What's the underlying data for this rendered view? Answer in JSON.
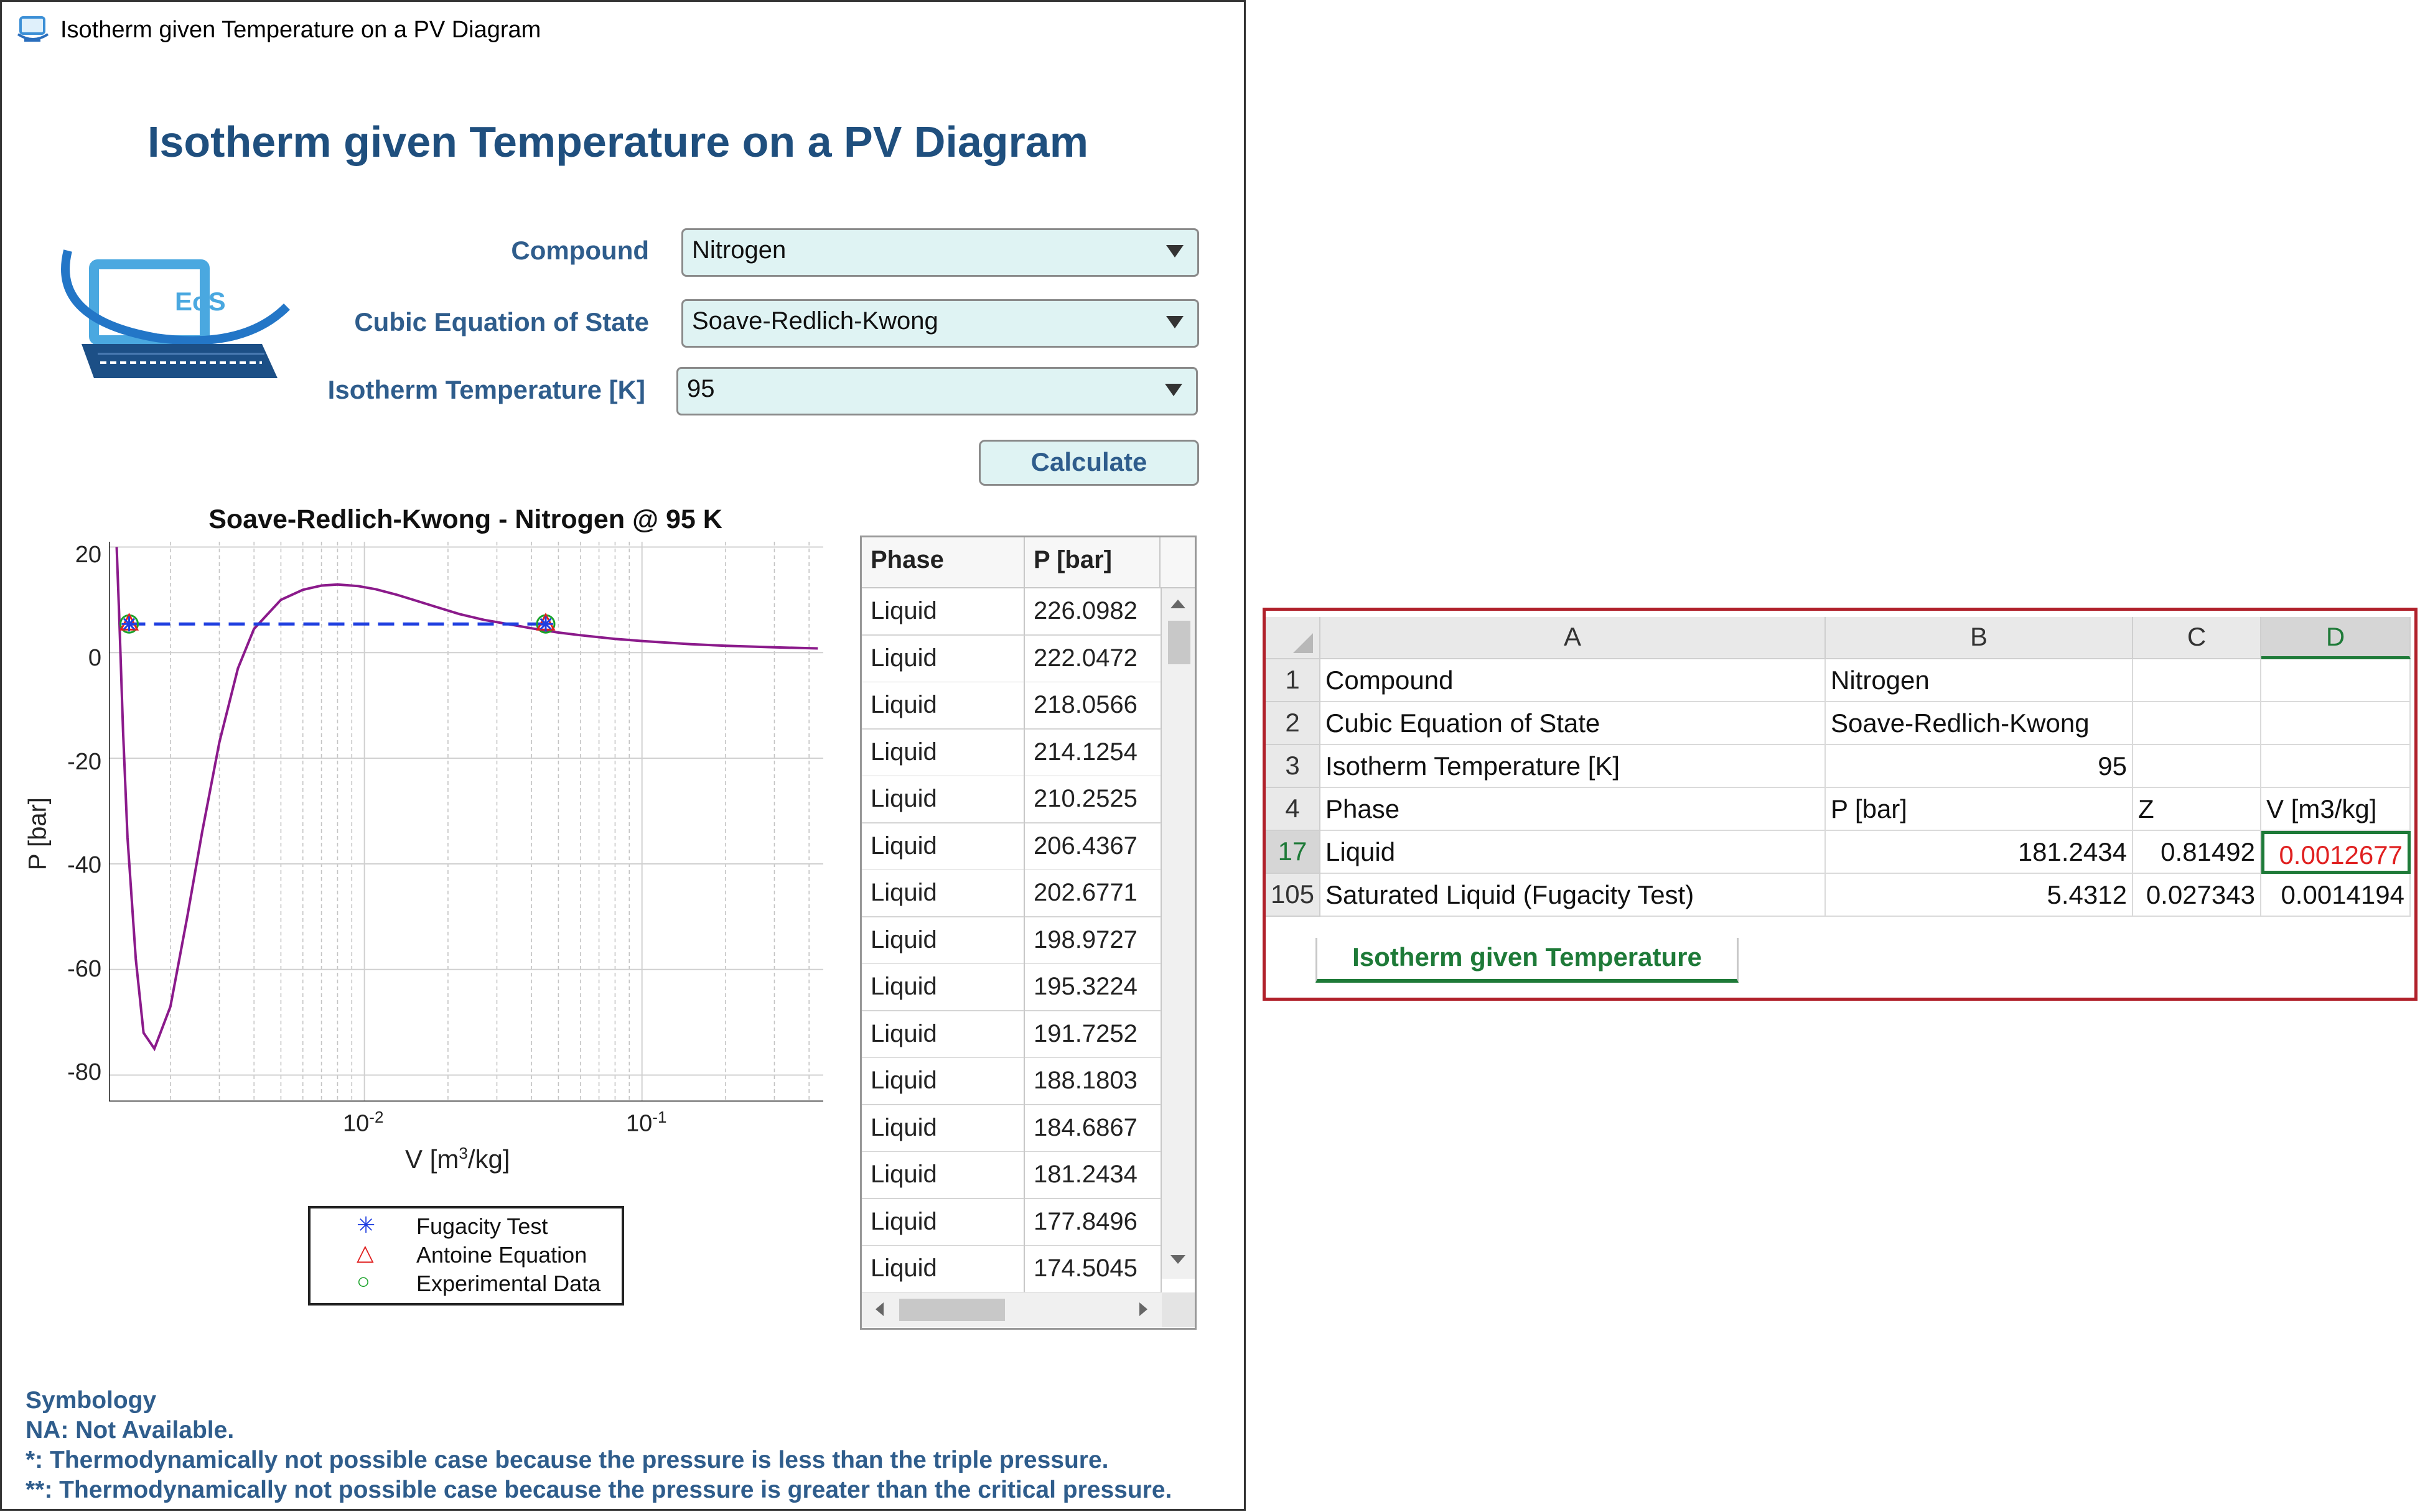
{
  "window": {
    "title": "Isotherm given Temperature on a PV Diagram"
  },
  "header": {
    "title": "Isotherm given Temperature on a PV Diagram"
  },
  "logo": {
    "text": "EoS"
  },
  "form": {
    "compound_label": "Compound",
    "compound_value": "Nitrogen",
    "eos_label": "Cubic Equation of State",
    "eos_value": "Soave-Redlich-Kwong",
    "temp_label": "Isotherm Temperature [K]",
    "temp_value": "95",
    "calculate_label": "Calculate"
  },
  "chart_data": {
    "type": "line",
    "title": "Soave-Redlich-Kwong - Nitrogen @ 95 K",
    "xlabel_prefix": "V  [m",
    "xlabel_sup": "3",
    "xlabel_suffix": "/kg]",
    "ylabel": "P [bar]",
    "xscale": "log",
    "xlim": [
      0.0012,
      0.45
    ],
    "ylim": [
      -85,
      21
    ],
    "yticks": [
      "20",
      "0",
      "-20",
      "-40",
      "-60",
      "-80"
    ],
    "xticks": [
      {
        "base": "10",
        "exp": "-2"
      },
      {
        "base": "10",
        "exp": "-1"
      }
    ],
    "grid": true,
    "series": [
      {
        "color": "#8b1a8b",
        "style": "solid",
        "x": [
          0.00128,
          0.00131,
          0.00135,
          0.0014,
          0.0015,
          0.0016,
          0.00175,
          0.002,
          0.0023,
          0.0026,
          0.003,
          0.0035,
          0.004,
          0.005,
          0.006,
          0.007,
          0.008,
          0.0095,
          0.011,
          0.013,
          0.015,
          0.018,
          0.022,
          0.027,
          0.033,
          0.04,
          0.05,
          0.06,
          0.08,
          0.1,
          0.15,
          0.2,
          0.3,
          0.43
        ],
        "y": [
          20,
          5.5,
          -15,
          -35,
          -58,
          -72,
          -75,
          -67,
          -50,
          -34,
          -17,
          -3,
          4.5,
          10,
          11.9,
          12.7,
          12.9,
          12.6,
          12.0,
          11.0,
          10.0,
          8.7,
          7.3,
          6.2,
          5.4,
          4.6,
          3.8,
          3.3,
          2.6,
          2.2,
          1.6,
          1.3,
          1.0,
          0.8
        ]
      },
      {
        "color": "#1f3fe0",
        "style": "dashed",
        "x": [
          0.0014194,
          0.045
        ],
        "y": [
          5.4312,
          5.4312
        ]
      }
    ],
    "markers": [
      {
        "x": 0.0014194,
        "y": 5.4312
      },
      {
        "x": 0.045,
        "y": 5.4312
      }
    ],
    "legend": {
      "position": "bottom",
      "entries": [
        "Fugacity Test",
        "Antoine Equation",
        "Experimental Data"
      ]
    }
  },
  "legend_symbols": {
    "star": "✳",
    "triangle": "△",
    "circle": "○"
  },
  "results_table": {
    "headers": [
      "Phase",
      "P [bar]"
    ],
    "rows": [
      [
        "Liquid",
        "226.0982"
      ],
      [
        "Liquid",
        "222.0472"
      ],
      [
        "Liquid",
        "218.0566"
      ],
      [
        "Liquid",
        "214.1254"
      ],
      [
        "Liquid",
        "210.2525"
      ],
      [
        "Liquid",
        "206.4367"
      ],
      [
        "Liquid",
        "202.6771"
      ],
      [
        "Liquid",
        "198.9727"
      ],
      [
        "Liquid",
        "195.3224"
      ],
      [
        "Liquid",
        "191.7252"
      ],
      [
        "Liquid",
        "188.1803"
      ],
      [
        "Liquid",
        "184.6867"
      ],
      [
        "Liquid",
        "181.2434"
      ],
      [
        "Liquid",
        "177.8496"
      ],
      [
        "Liquid",
        "174.5045"
      ]
    ]
  },
  "symbology": {
    "title": "Symbology",
    "line1": "NA: Not Available.",
    "line2": "*: Thermodynamically not possible case because the pressure is less than the triple pressure.",
    "line3": "**: Thermodynamically not possible case because the pressure is greater than the critical pressure."
  },
  "spreadsheet": {
    "columns": [
      "A",
      "B",
      "C",
      "D"
    ],
    "rows": [
      {
        "num": "1",
        "a": "Compound",
        "b": "Nitrogen",
        "c": "",
        "d": ""
      },
      {
        "num": "2",
        "a": "Cubic Equation of State",
        "b": "Soave-Redlich-Kwong",
        "c": "",
        "d": ""
      },
      {
        "num": "3",
        "a": "Isotherm Temperature [K]",
        "b": "95",
        "c": "",
        "d": ""
      },
      {
        "num": "4",
        "a": "Phase",
        "b": "P [bar]",
        "c": "Z",
        "d": "V [m3/kg]"
      },
      {
        "num": "17",
        "a": "Liquid",
        "b": "181.2434",
        "c": "0.81492",
        "d": "0.0012677"
      },
      {
        "num": "105",
        "a": "Saturated Liquid (Fugacity Test)",
        "b": "5.4312",
        "c": "0.027343",
        "d": "0.0014194"
      }
    ],
    "sheet_tab": "Isotherm given Temperature",
    "colors": {
      "tab_green": "#1e7a38",
      "selected_red": "#e02020",
      "selected_border": "#1e7a38"
    }
  }
}
